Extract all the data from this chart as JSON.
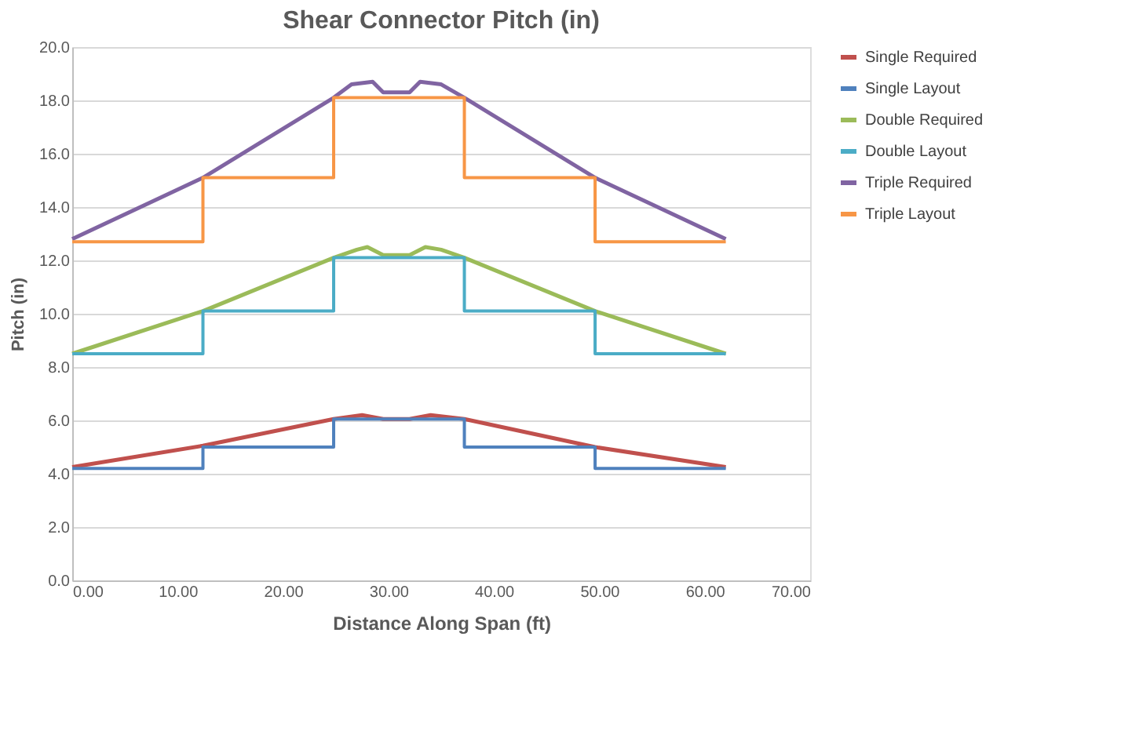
{
  "chart_data": {
    "type": "line",
    "title": "Shear Connector Pitch (in)",
    "xlabel": "Distance  Along Span (ft)",
    "ylabel": "Pitch  (in)",
    "xlim": [
      0,
      70
    ],
    "xticks": [
      {
        "value": 0,
        "label": "0.00"
      },
      {
        "value": 10,
        "label": "10.00"
      },
      {
        "value": 20,
        "label": "20.00"
      },
      {
        "value": 30,
        "label": "30.00"
      },
      {
        "value": 40,
        "label": "40.00"
      },
      {
        "value": 50,
        "label": "50.00"
      },
      {
        "value": 60,
        "label": "60.00"
      },
      {
        "value": 70,
        "label": "70.00"
      }
    ],
    "ylim": [
      0,
      20
    ],
    "yticks": [
      {
        "value": 0,
        "label": "0.0"
      },
      {
        "value": 2,
        "label": "2.0"
      },
      {
        "value": 4,
        "label": "4.0"
      },
      {
        "value": 6,
        "label": "6.0"
      },
      {
        "value": 8,
        "label": "8.0"
      },
      {
        "value": 10,
        "label": "10.0"
      },
      {
        "value": 12,
        "label": "12.0"
      },
      {
        "value": 14,
        "label": "14.0"
      },
      {
        "value": 16,
        "label": "16.0"
      },
      {
        "value": 18,
        "label": "18.0"
      },
      {
        "value": 20,
        "label": "20.0"
      }
    ],
    "grid": "y",
    "legend": "right",
    "marker": "none",
    "series": [
      {
        "name": "Single Required",
        "color": "#c0504d",
        "x": [
          0,
          12.4,
          24.8,
          27.5,
          29.5,
          32,
          34,
          37.2,
          49.6,
          62
        ],
        "values": [
          4.25,
          5.05,
          6.05,
          6.2,
          6.05,
          6.05,
          6.2,
          6.05,
          5.0,
          4.25
        ]
      },
      {
        "name": "Single Layout",
        "type": "step",
        "color": "#4f81bd",
        "x": [
          0,
          12.4,
          24.8,
          37.2,
          49.6,
          62
        ],
        "values": [
          4.2,
          5.0,
          6.05,
          5.0,
          4.2,
          4.2
        ]
      },
      {
        "name": "Double Required",
        "color": "#9bbb59",
        "x": [
          0,
          12.4,
          24.8,
          27,
          28,
          29.5,
          32,
          33.5,
          35,
          37.2,
          49.6,
          62
        ],
        "values": [
          8.5,
          10.1,
          12.1,
          12.4,
          12.5,
          12.2,
          12.2,
          12.5,
          12.4,
          12.1,
          10.1,
          8.5
        ]
      },
      {
        "name": "Double Layout",
        "type": "step",
        "color": "#4bacc6",
        "x": [
          0,
          12.4,
          24.8,
          37.2,
          49.6,
          62
        ],
        "values": [
          8.5,
          10.1,
          12.1,
          10.1,
          8.5,
          8.5
        ]
      },
      {
        "name": "Triple Required",
        "color": "#8064a2",
        "x": [
          0,
          12.4,
          24.8,
          26.5,
          28.5,
          29.5,
          32,
          33,
          35,
          37.2,
          49.6,
          62
        ],
        "values": [
          12.8,
          15.1,
          18.1,
          18.6,
          18.7,
          18.3,
          18.3,
          18.7,
          18.6,
          18.1,
          15.1,
          12.8
        ]
      },
      {
        "name": "Triple Layout",
        "type": "step",
        "color": "#f79646",
        "x": [
          0,
          12.4,
          24.8,
          37.2,
          49.6,
          62
        ],
        "values": [
          12.7,
          15.1,
          18.1,
          15.1,
          12.7,
          12.7
        ]
      }
    ]
  }
}
